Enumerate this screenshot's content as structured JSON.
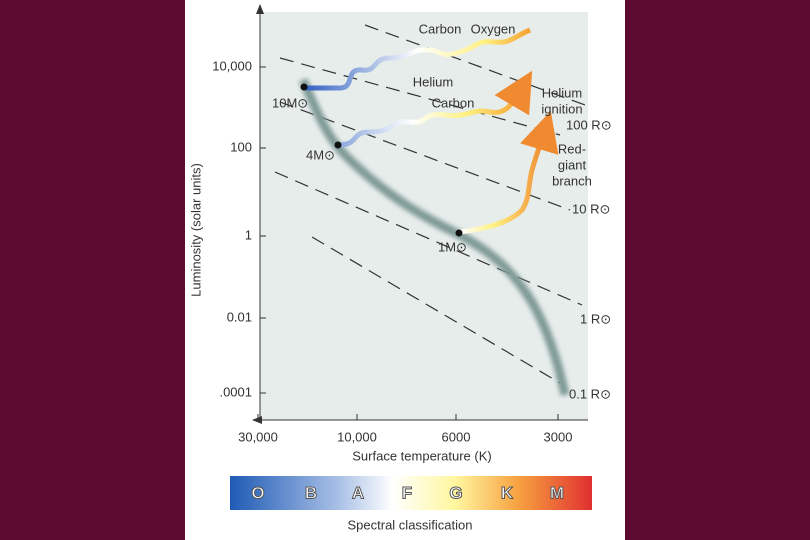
{
  "y_axis": {
    "title": "Luminosity (solar units)",
    "ticks": [
      "10,000",
      "100",
      "1",
      "0.01",
      ".0001"
    ]
  },
  "x_axis": {
    "title": "Surface temperature (K)",
    "ticks": [
      "30,000",
      "10,000",
      "6000",
      "3000"
    ]
  },
  "radius_labels": [
    "100 R⊙",
    "10 R⊙",
    "1 R⊙",
    "0.1 R⊙"
  ],
  "mass_labels": [
    "10M⊙",
    "4M⊙",
    "1M⊙"
  ],
  "annotations": [
    [
      "Carbon"
    ],
    [
      "Oxygen"
    ],
    [
      "Helium"
    ],
    [
      "Carbon"
    ],
    [
      "Helium",
      "ignition"
    ],
    [
      "Red-",
      "giant",
      "branch"
    ]
  ],
  "spectral": {
    "classes": [
      "O",
      "B",
      "A",
      "F",
      "G",
      "K",
      "M"
    ],
    "title": "Spectral classification"
  }
}
